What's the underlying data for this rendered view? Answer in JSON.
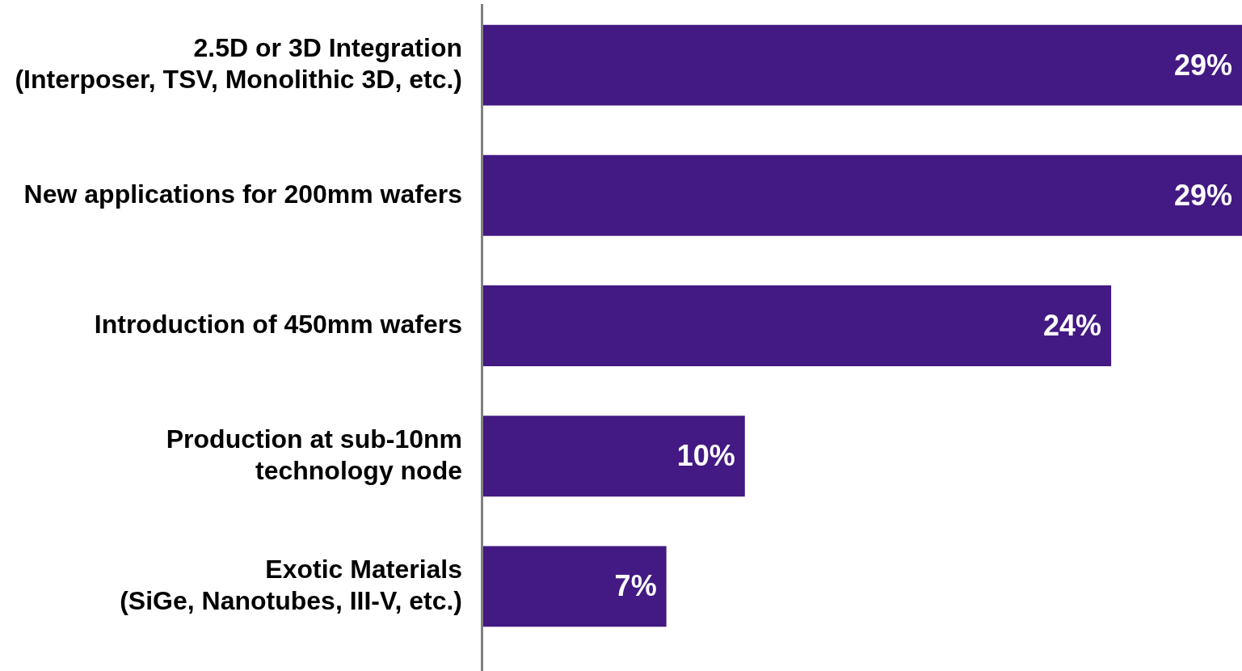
{
  "chart_data": {
    "type": "bar",
    "orientation": "horizontal",
    "tick_labels": "y",
    "categories": [
      "2.5D or 3D Integration\n(Interposer, TSV, Monolithic 3D, etc.)",
      "New applications for 200mm wafers",
      "Introduction of 450mm wafers",
      "Production at sub-10nm\ntechnology node",
      "Exotic Materials\n(SiGe, Nanotubes, III-V, etc.)"
    ],
    "values": [
      29,
      29,
      24,
      10,
      7
    ],
    "value_labels": [
      "29%",
      "29%",
      "24%",
      "10%",
      "7%"
    ],
    "color": "#431983"
  }
}
